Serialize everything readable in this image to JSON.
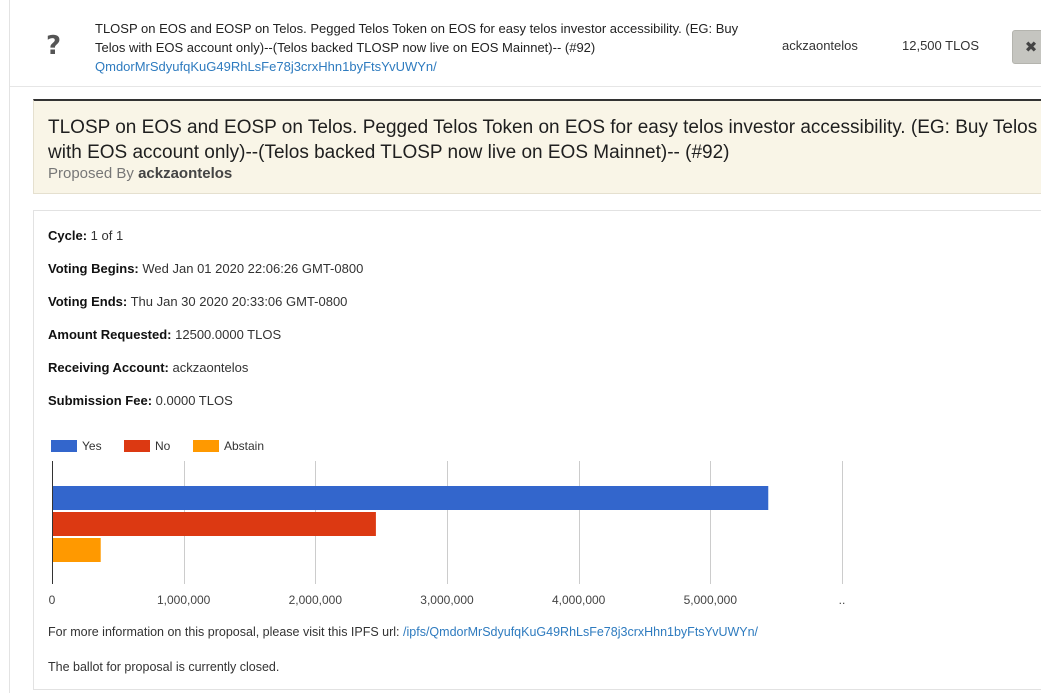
{
  "list_row": {
    "icon": "question-icon",
    "title": "TLOSP on EOS and EOSP on Telos. Pegged Telos Token on EOS for easy telos investor accessibility. (EG: Buy Telos with EOS account only)--(Telos backed TLOSP now live on EOS Mainnet)-- (#92)",
    "hash_link": "QmdorMrSdyufqKuG49RhLsFe78j3crxHhn1byFtsYvUWYn/",
    "account": "ackzaontelos",
    "amount": "12,500 TLOS",
    "close_label": "✖"
  },
  "header": {
    "title": "TLOSP on EOS and EOSP on Telos. Pegged Telos Token on EOS for easy telos investor accessibility. (EG: Buy Telos with EOS account only)--(Telos backed TLOSP now live on EOS Mainnet)-- (#92)",
    "proposed_by_label": "Proposed By",
    "proposed_by": "ackzaontelos"
  },
  "details": {
    "cycle_label": "Cycle:",
    "cycle": "1 of 1",
    "voting_begins_label": "Voting Begins:",
    "voting_begins": "Wed Jan 01 2020 22:06:26 GMT-0800",
    "voting_ends_label": "Voting Ends:",
    "voting_ends": "Thu Jan 30 2020 20:33:06 GMT-0800",
    "amount_requested_label": "Amount Requested:",
    "amount_requested": "12500.0000 TLOS",
    "receiving_account_label": "Receiving Account:",
    "receiving_account": "ackzaontelos",
    "submission_fee_label": "Submission Fee:",
    "submission_fee": "0.0000 TLOS"
  },
  "chart_data": {
    "type": "bar",
    "orientation": "horizontal",
    "categories": [
      "Yes",
      "No",
      "Abstain"
    ],
    "values": [
      5440000,
      2460000,
      370000
    ],
    "colors": [
      "#3366cc",
      "#dc3912",
      "#ff9900"
    ],
    "xlim": [
      0,
      6000000
    ],
    "x_ticks": [
      "0",
      "1,000,000",
      "2,000,000",
      "3,000,000",
      "4,000,000",
      "5,000,000",
      ".."
    ],
    "x_tick_values": [
      0,
      1000000,
      2000000,
      3000000,
      4000000,
      5000000,
      6000000
    ],
    "legend": "top-left"
  },
  "footer": {
    "ipfs_text": "For more information on this proposal, please visit this IPFS url:",
    "ipfs_link": "/ipfs/QmdorMrSdyufqKuG49RhLsFe78j3crxHhn1byFtsYvUWYn/",
    "ballot_status": "The ballot for proposal is currently closed."
  }
}
